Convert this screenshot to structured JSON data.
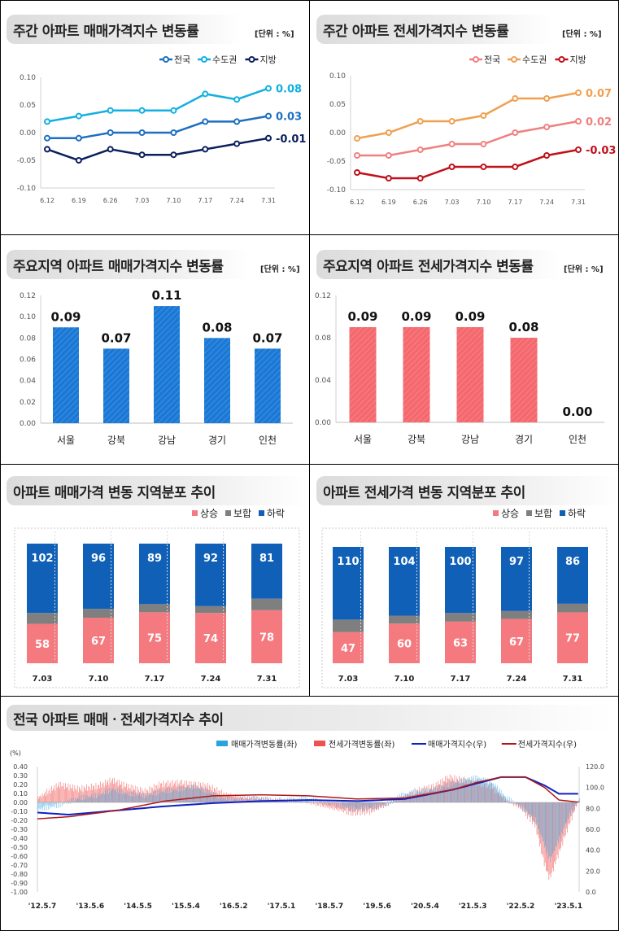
{
  "colors": {
    "c_dark_blue": "#0b1f5c",
    "c_mid_blue": "#1d6fc0",
    "c_light_blue": "#12b0e0",
    "c_pink": "#f08080",
    "c_orange": "#f0a050",
    "c_dark_red": "#c0101a",
    "c_bar_blue": "#1a78d6",
    "c_bar_pink": "#f4686e",
    "c_rise": "#f47a80",
    "c_flat": "#7f7f7f",
    "c_fall": "#1060b8"
  },
  "panel1": {
    "title": "주간 아파트 매매가격지수 변동률",
    "unit": "[단위 : %]",
    "chart_data": {
      "type": "line",
      "title": "주간 아파트 매매가격지수 변동률",
      "x": [
        "6.12",
        "6.19",
        "6.26",
        "7.03",
        "7.10",
        "7.17",
        "7.24",
        "7.31"
      ],
      "ylim": [
        -0.1,
        0.1
      ],
      "yticks": [
        "0.10",
        "0.05",
        "0.00",
        "-0.05",
        "-0.10"
      ],
      "legend_position": "top-right",
      "series": [
        {
          "name": "전국",
          "values": [
            -0.01,
            -0.01,
            0.0,
            0.0,
            0.0,
            0.02,
            0.02,
            0.03
          ],
          "end_label": "0.03"
        },
        {
          "name": "수도권",
          "values": [
            0.02,
            0.03,
            0.04,
            0.04,
            0.04,
            0.07,
            0.06,
            0.08
          ],
          "end_label": "0.08"
        },
        {
          "name": "지방",
          "values": [
            -0.03,
            -0.05,
            -0.03,
            -0.04,
            -0.04,
            -0.03,
            -0.02,
            -0.01
          ],
          "end_label": "-0.01"
        }
      ]
    }
  },
  "panel2": {
    "title": "주간 아파트 전세가격지수 변동률",
    "unit": "[단위 : %]",
    "chart_data": {
      "type": "line",
      "title": "주간 아파트 전세가격지수 변동률",
      "x": [
        "6.12",
        "6.19",
        "6.26",
        "7.03",
        "7.10",
        "7.17",
        "7.24",
        "7.31"
      ],
      "ylim": [
        -0.1,
        0.1
      ],
      "yticks": [
        "0.10",
        "0.05",
        "0.00",
        "-0.05",
        "-0.10"
      ],
      "legend_position": "top-right",
      "series": [
        {
          "name": "전국",
          "values": [
            -0.04,
            -0.04,
            -0.03,
            -0.02,
            -0.02,
            0.0,
            0.01,
            0.02
          ],
          "end_label": "0.02"
        },
        {
          "name": "수도권",
          "values": [
            -0.01,
            0.0,
            0.02,
            0.02,
            0.03,
            0.06,
            0.06,
            0.07
          ],
          "end_label": "0.07"
        },
        {
          "name": "지방",
          "values": [
            -0.07,
            -0.08,
            -0.08,
            -0.06,
            -0.06,
            -0.06,
            -0.04,
            -0.03
          ],
          "end_label": "-0.03"
        }
      ]
    }
  },
  "panel3": {
    "title": "주요지역 아파트 매매가격지수 변동률",
    "unit": "[단위 : %]",
    "chart_data": {
      "type": "bar",
      "title": "주요지역 아파트 매매가격지수 변동률",
      "categories": [
        "서울",
        "강북",
        "강남",
        "경기",
        "인천"
      ],
      "values": [
        0.09,
        0.07,
        0.11,
        0.08,
        0.07
      ],
      "labels": [
        "0.09",
        "0.07",
        "0.11",
        "0.08",
        "0.07"
      ],
      "ylim": [
        0,
        0.12
      ],
      "yticks": [
        "0.12",
        "0.10",
        "0.08",
        "0.06",
        "0.04",
        "0.02",
        "0.00"
      ]
    }
  },
  "panel4": {
    "title": "주요지역 아파트 전세가격지수 변동률",
    "unit": "[단위 : %]",
    "chart_data": {
      "type": "bar",
      "title": "주요지역 아파트 전세가격지수 변동률",
      "categories": [
        "서울",
        "강북",
        "강남",
        "경기",
        "인천"
      ],
      "values": [
        0.09,
        0.09,
        0.09,
        0.08,
        0.0
      ],
      "labels": [
        "0.09",
        "0.09",
        "0.09",
        "0.08",
        "0.00"
      ],
      "ylim": [
        0,
        0.12
      ],
      "yticks": [
        "0.12",
        "0.08",
        "0.04",
        "0.00"
      ]
    }
  },
  "panel5": {
    "title": "아파트 매매가격 변동 지역분포 추이",
    "chart_data": {
      "type": "bar",
      "stacked": true,
      "title": "아파트 매매가격 변동 지역분포 추이",
      "categories": [
        "7.03",
        "7.10",
        "7.17",
        "7.24",
        "7.31"
      ],
      "legend_position": "top-right",
      "series": [
        {
          "name": "상승",
          "values": [
            58,
            67,
            75,
            74,
            78
          ]
        },
        {
          "name": "보합",
          "values": [
            16,
            13,
            12,
            10,
            17
          ]
        },
        {
          "name": "하락",
          "values": [
            102,
            96,
            89,
            92,
            81
          ]
        }
      ]
    }
  },
  "panel6": {
    "title": "아파트 전세가격 변동 지역분포 추이",
    "chart_data": {
      "type": "bar",
      "stacked": true,
      "title": "아파트 전세가격 변동 지역분포 추이",
      "categories": [
        "7.03",
        "7.10",
        "7.17",
        "7.24",
        "7.31"
      ],
      "legend_position": "top-right",
      "series": [
        {
          "name": "상승",
          "values": [
            47,
            60,
            63,
            67,
            77
          ]
        },
        {
          "name": "보합",
          "values": [
            19,
            12,
            13,
            12,
            13
          ]
        },
        {
          "name": "하락",
          "values": [
            110,
            104,
            100,
            97,
            86
          ]
        }
      ]
    }
  },
  "panel7": {
    "title": "전국 아파트 매매ㆍ전세가격지수 추이",
    "chart_data": {
      "type": "bar",
      "combo": "bars (left axis) + lines (right axis)",
      "title": "전국 아파트 매매ㆍ전세가격지수 추이",
      "y_left_label": "(%)",
      "y_left_ticks": [
        "0.40",
        "0.30",
        "0.20",
        "0.10",
        "0.00",
        "-0.10",
        "-0.20",
        "-0.30",
        "-0.40",
        "-0.50",
        "-0.60",
        "-0.70",
        "-0.80",
        "-0.90",
        "-1.00"
      ],
      "ylim_left": [
        -1.0,
        0.4
      ],
      "y_right_ticks": [
        "120.0",
        "100.0",
        "80.0",
        "60.0",
        "40.0",
        "20.0",
        "0.0"
      ],
      "ylim_right": [
        0,
        120
      ],
      "x_tick_labels": [
        "'12.5.7",
        "'13.5.6",
        "'14.5.5",
        "'15.5.4",
        "'16.5.2",
        "'17.5.1",
        "'18.5.7",
        "'19.5.6",
        "'20.5.4",
        "'21.5.3",
        "'22.5.2",
        "'23.5.1"
      ],
      "legend_position": "top-right",
      "series": [
        {
          "name": "매매가격변동률(좌)",
          "kind": "bar",
          "axis": "left",
          "keypoints": [
            [
              2012.35,
              -0.08
            ],
            [
              2012.8,
              -0.03
            ],
            [
              2013.2,
              0.05
            ],
            [
              2013.6,
              0.08
            ],
            [
              2013.9,
              0.15
            ],
            [
              2014.2,
              0.1
            ],
            [
              2014.6,
              0.08
            ],
            [
              2014.9,
              0.12
            ],
            [
              2015.3,
              0.15
            ],
            [
              2015.6,
              0.18
            ],
            [
              2015.9,
              0.12
            ],
            [
              2016.2,
              0.05
            ],
            [
              2016.6,
              0.03
            ],
            [
              2016.9,
              0.05
            ],
            [
              2017.3,
              0.02
            ],
            [
              2017.6,
              0.03
            ],
            [
              2017.9,
              0.04
            ],
            [
              2018.2,
              0.02
            ],
            [
              2018.6,
              -0.03
            ],
            [
              2018.9,
              -0.08
            ],
            [
              2019.3,
              -0.06
            ],
            [
              2019.6,
              -0.02
            ],
            [
              2019.9,
              0.08
            ],
            [
              2020.2,
              0.12
            ],
            [
              2020.6,
              0.15
            ],
            [
              2020.9,
              0.2
            ],
            [
              2021.2,
              0.25
            ],
            [
              2021.5,
              0.28
            ],
            [
              2021.8,
              0.22
            ],
            [
              2022.1,
              0.05
            ],
            [
              2022.4,
              -0.05
            ],
            [
              2022.7,
              -0.2
            ],
            [
              2022.9,
              -0.5
            ],
            [
              2023.0,
              -0.65
            ],
            [
              2023.2,
              -0.4
            ],
            [
              2023.4,
              -0.15
            ],
            [
              2023.6,
              0.03
            ]
          ]
        },
        {
          "name": "전세가격변동률(좌)",
          "kind": "bar",
          "axis": "left",
          "keypoints": [
            [
              2012.35,
              0.05
            ],
            [
              2012.8,
              0.2
            ],
            [
              2013.2,
              0.15
            ],
            [
              2013.6,
              0.18
            ],
            [
              2013.9,
              0.25
            ],
            [
              2014.2,
              0.18
            ],
            [
              2014.6,
              0.12
            ],
            [
              2014.9,
              0.2
            ],
            [
              2015.3,
              0.22
            ],
            [
              2015.6,
              0.2
            ],
            [
              2015.9,
              0.18
            ],
            [
              2016.2,
              0.1
            ],
            [
              2016.6,
              0.06
            ],
            [
              2016.9,
              0.05
            ],
            [
              2017.3,
              0.03
            ],
            [
              2017.6,
              0.02
            ],
            [
              2017.9,
              0.01
            ],
            [
              2018.2,
              -0.03
            ],
            [
              2018.6,
              -0.08
            ],
            [
              2018.9,
              -0.12
            ],
            [
              2019.3,
              -0.1
            ],
            [
              2019.6,
              -0.03
            ],
            [
              2019.9,
              0.05
            ],
            [
              2020.2,
              0.12
            ],
            [
              2020.6,
              0.18
            ],
            [
              2020.9,
              0.28
            ],
            [
              2021.2,
              0.25
            ],
            [
              2021.5,
              0.22
            ],
            [
              2021.8,
              0.18
            ],
            [
              2022.1,
              0.02
            ],
            [
              2022.4,
              -0.06
            ],
            [
              2022.7,
              -0.25
            ],
            [
              2022.9,
              -0.7
            ],
            [
              2023.0,
              -0.85
            ],
            [
              2023.2,
              -0.55
            ],
            [
              2023.4,
              -0.25
            ],
            [
              2023.6,
              0.02
            ]
          ]
        },
        {
          "name": "매매가격지수(우)",
          "kind": "line",
          "axis": "right",
          "keypoints": [
            [
              2012.35,
              76
            ],
            [
              2013.0,
              74
            ],
            [
              2014.0,
              78
            ],
            [
              2015.0,
              82
            ],
            [
              2016.0,
              85
            ],
            [
              2017.0,
              87
            ],
            [
              2018.0,
              88
            ],
            [
              2019.0,
              87
            ],
            [
              2020.0,
              89
            ],
            [
              2021.0,
              98
            ],
            [
              2021.5,
              104
            ],
            [
              2022.0,
              110
            ],
            [
              2022.5,
              110
            ],
            [
              2022.9,
              102
            ],
            [
              2023.2,
              94
            ],
            [
              2023.6,
              94
            ]
          ]
        },
        {
          "name": "전세가격지수(우)",
          "kind": "line",
          "axis": "right",
          "keypoints": [
            [
              2012.35,
              70
            ],
            [
              2013.0,
              72
            ],
            [
              2014.0,
              78
            ],
            [
              2015.0,
              87
            ],
            [
              2016.0,
              92
            ],
            [
              2017.0,
              93
            ],
            [
              2018.0,
              92
            ],
            [
              2019.0,
              89
            ],
            [
              2020.0,
              90
            ],
            [
              2021.0,
              98
            ],
            [
              2021.5,
              105
            ],
            [
              2022.0,
              110
            ],
            [
              2022.5,
              110
            ],
            [
              2022.9,
              100
            ],
            [
              2023.2,
              88
            ],
            [
              2023.6,
              86
            ]
          ]
        }
      ]
    }
  }
}
